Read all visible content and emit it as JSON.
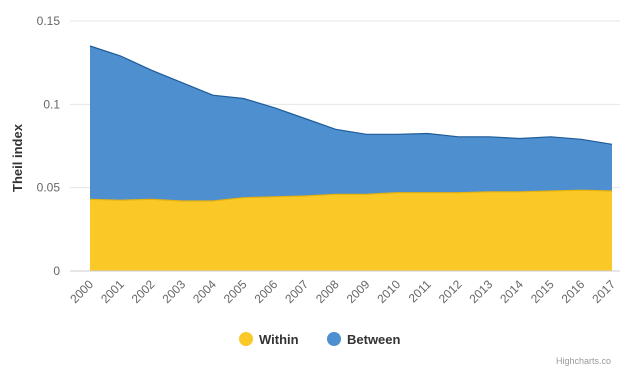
{
  "chart_data": {
    "type": "area",
    "stacked": true,
    "ylabel": "Theil index",
    "xlabel": "",
    "ylim": [
      0,
      0.15
    ],
    "yticks": [
      "0",
      "0.05",
      "0.1",
      "0.15"
    ],
    "ytick_values": [
      0,
      0.05,
      0.1,
      0.15
    ],
    "grid": true,
    "legend_position": "bottom-center",
    "credits": "Highcharts.co",
    "categories": [
      "2000",
      "2001",
      "2002",
      "2003",
      "2004",
      "2005",
      "2006",
      "2007",
      "2008",
      "2009",
      "2010",
      "2011",
      "2012",
      "2013",
      "2014",
      "2015",
      "2016",
      "2017"
    ],
    "series": [
      {
        "name": "Within",
        "color": "#fac928",
        "values": [
          0.043,
          0.0425,
          0.043,
          0.042,
          0.042,
          0.044,
          0.0445,
          0.045,
          0.046,
          0.046,
          0.047,
          0.047,
          0.047,
          0.0475,
          0.0475,
          0.048,
          0.0485,
          0.048
        ]
      },
      {
        "name": "Between",
        "color": "#4d8fcf",
        "values": [
          0.092,
          0.0865,
          0.0775,
          0.071,
          0.0635,
          0.0595,
          0.0535,
          0.0465,
          0.039,
          0.036,
          0.035,
          0.0355,
          0.0335,
          0.033,
          0.032,
          0.0325,
          0.0305,
          0.028
        ]
      }
    ]
  }
}
